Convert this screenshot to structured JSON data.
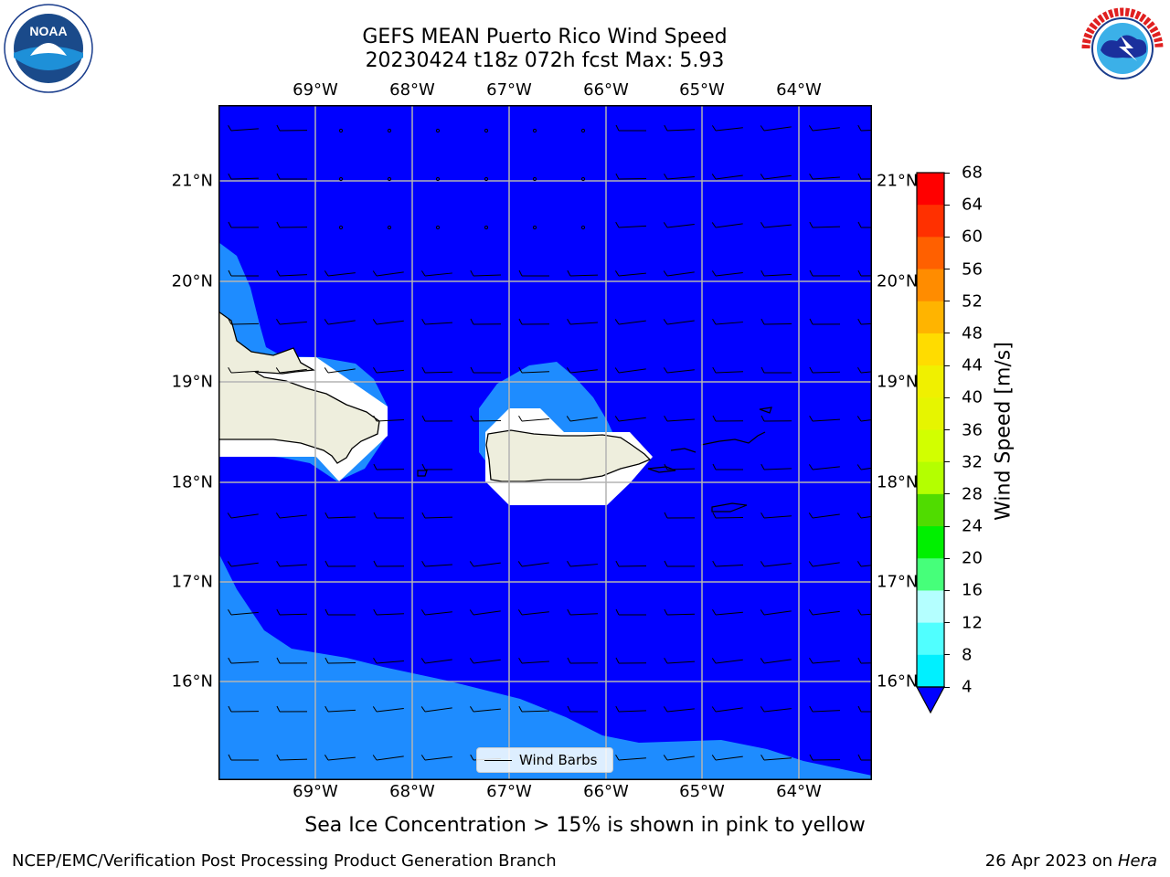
{
  "header": {
    "title_line1": "GEFS MEAN Puerto Rico Wind Speed",
    "title_line2": "20230424 t18z 072h fcst   Max: 5.93"
  },
  "map": {
    "lon_labels": [
      "69°W",
      "68°W",
      "67°W",
      "66°W",
      "65°W",
      "64°W"
    ],
    "lat_labels": [
      "21°N",
      "20°N",
      "19°N",
      "18°N",
      "17°N",
      "16°N"
    ],
    "colors": {
      "background_4_8": "#0000ff",
      "band_8_12": "#1e8cff",
      "land": "#eeeedd",
      "grid": "#b3b3b3"
    },
    "legend_label": "Wind Barbs"
  },
  "colorbar": {
    "label": "Wind Speed [m/s]",
    "ticks": [
      "68",
      "64",
      "60",
      "56",
      "52",
      "48",
      "44",
      "40",
      "36",
      "32",
      "28",
      "24",
      "20",
      "16",
      "12",
      "8",
      "4"
    ],
    "colors": [
      "#ff0000",
      "#ff3000",
      "#ff6000",
      "#ff8c00",
      "#ffb400",
      "#ffdc00",
      "#f0f000",
      "#e6f500",
      "#d2ff00",
      "#b4ff00",
      "#50dc00",
      "#00f000",
      "#46ff7a",
      "#b4ffff",
      "#50ffff",
      "#00f0ff",
      "#0080ff"
    ],
    "extend_color": "#0000ff"
  },
  "note": "Sea Ice Concentration > 15% is shown in pink to yellow",
  "footer": {
    "left": "NCEP/EMC/Verification Post Processing Product Generation Branch",
    "date": "26 Apr 2023 on ",
    "machine": "Hera"
  },
  "logos": {
    "left": "NOAA",
    "right": "NATIONAL WEATHER SERVICE"
  }
}
